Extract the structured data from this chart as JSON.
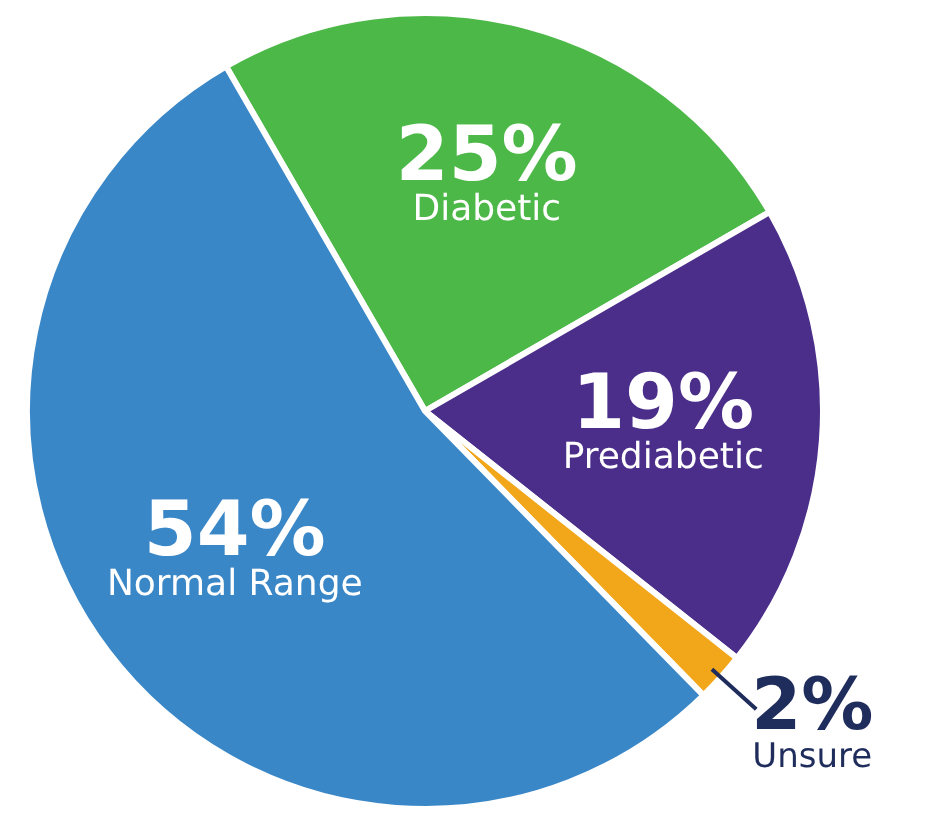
{
  "chart_data": {
    "type": "pie",
    "categories": [
      "Diabetic",
      "Prediabetic",
      "Unsure",
      "Normal Range"
    ],
    "values": [
      25,
      19,
      2,
      54
    ],
    "value_labels": [
      "25%",
      "19%",
      "2%",
      "54%"
    ],
    "colors": [
      "#4cb848",
      "#4b2e8a",
      "#f2a71b",
      "#3a87c8"
    ]
  }
}
